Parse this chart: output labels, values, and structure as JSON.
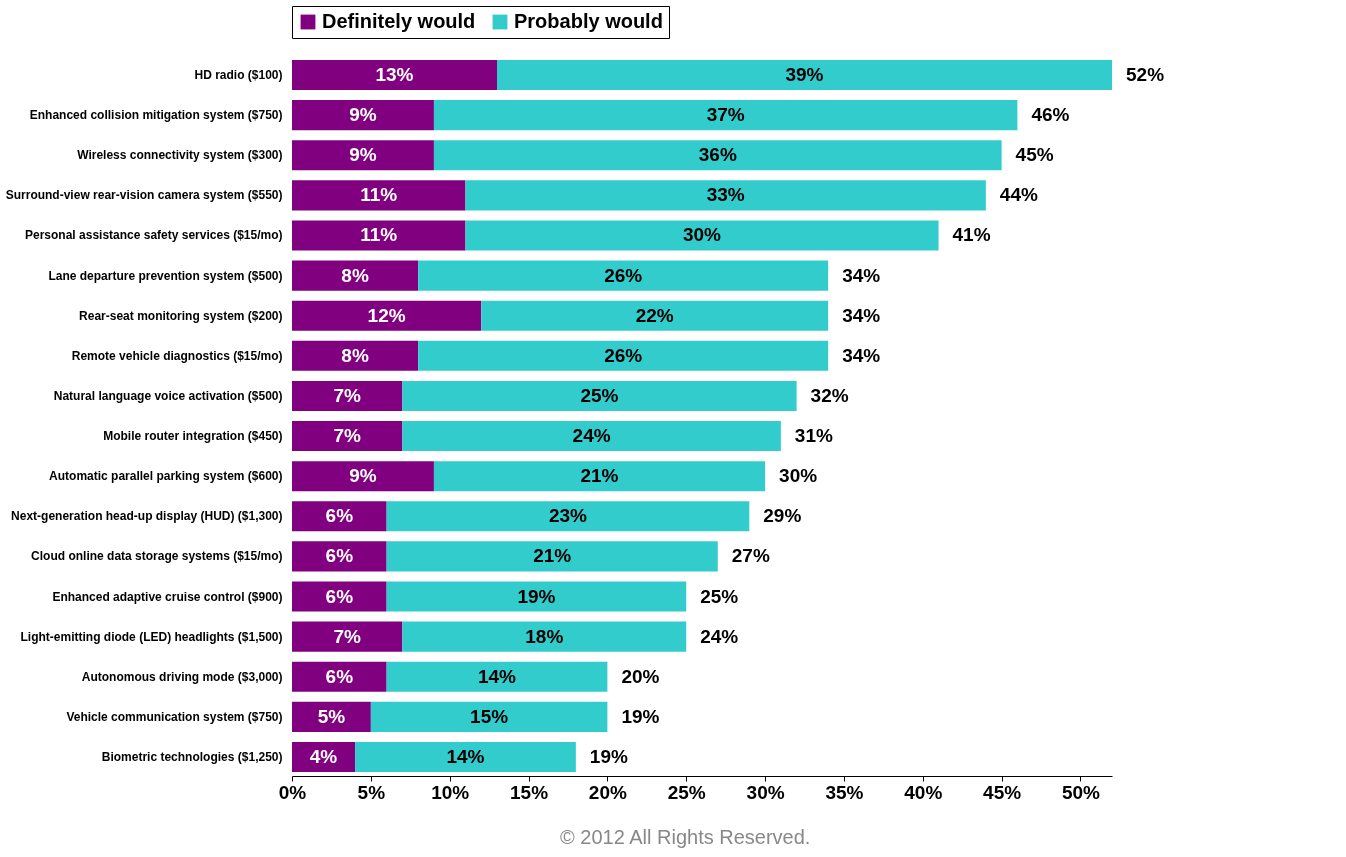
{
  "chart_data": {
    "type": "bar",
    "orientation": "horizontal",
    "stacked": true,
    "legend": "top",
    "grid": false,
    "categories": [
      "HD radio ($100)",
      "Enhanced collision mitigation system ($750)",
      "Wireless connectivity system ($300)",
      "Surround-view rear-vision camera system ($550)",
      "Personal assistance safety services ($15/mo)",
      "Lane departure prevention system ($500)",
      "Rear-seat monitoring system ($200)",
      "Remote vehicle diagnostics ($15/mo)",
      "Natural language voice activation ($500)",
      "Mobile router integration ($450)",
      "Automatic parallel parking system ($600)",
      "Next-generation head-up display (HUD) ($1,300)",
      "Cloud online data storage systems ($15/mo)",
      "Enhanced adaptive cruise control ($900)",
      "Light-emitting diode (LED) headlights ($1,500)",
      "Autonomous driving mode ($3,000)",
      "Vehicle communication system ($750)",
      "Biometric technologies ($1,250)"
    ],
    "series": [
      {
        "name": "Definitely would",
        "color": "#800080",
        "values": [
          13,
          9,
          9,
          11,
          11,
          8,
          12,
          8,
          7,
          7,
          9,
          6,
          6,
          6,
          7,
          6,
          5,
          4
        ],
        "value_labels": [
          "13%",
          "9%",
          "9%",
          "11%",
          "11%",
          "8%",
          "12%",
          "8%",
          "7%",
          "7%",
          "9%",
          "6%",
          "6%",
          "6%",
          "7%",
          "6%",
          "5%",
          "4%"
        ]
      },
      {
        "name": "Probably would",
        "color": "#33cccc",
        "values": [
          39,
          37,
          36,
          33,
          30,
          26,
          22,
          26,
          25,
          24,
          21,
          23,
          21,
          19,
          18,
          14,
          15,
          14
        ],
        "value_labels": [
          "39%",
          "37%",
          "36%",
          "33%",
          "30%",
          "26%",
          "22%",
          "26%",
          "25%",
          "24%",
          "21%",
          "23%",
          "21%",
          "19%",
          "18%",
          "14%",
          "15%",
          "14%"
        ]
      }
    ],
    "totals": [
      "52%",
      "46%",
      "45%",
      "44%",
      "41%",
      "34%",
      "34%",
      "34%",
      "32%",
      "31%",
      "30%",
      "29%",
      "27%",
      "25%",
      "24%",
      "20%",
      "19%",
      "19%"
    ],
    "xlim": [
      0,
      52
    ],
    "xticks": [
      {
        "value": 0,
        "label": "0%"
      },
      {
        "value": 5,
        "label": "5%"
      },
      {
        "value": 10,
        "label": "10%"
      },
      {
        "value": 15,
        "label": "15%"
      },
      {
        "value": 20,
        "label": "20%"
      },
      {
        "value": 25,
        "label": "25%"
      },
      {
        "value": 30,
        "label": "30%"
      },
      {
        "value": 35,
        "label": "35%"
      },
      {
        "value": 40,
        "label": "40%"
      },
      {
        "value": 45,
        "label": "45%"
      },
      {
        "value": 50,
        "label": "50%"
      }
    ],
    "annotations": [
      "© 2012 All Rights Reserved."
    ]
  }
}
